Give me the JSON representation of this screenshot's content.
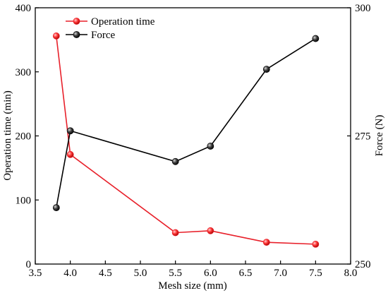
{
  "chart_data": {
    "type": "line",
    "title": "",
    "xlabel": "Mesh size (mm)",
    "ylabel_left": "Operation time (min)",
    "ylabel_right": "Force (N)",
    "xlim": [
      3.5,
      8.0
    ],
    "ylim_left": [
      0,
      400
    ],
    "ylim_right": [
      250,
      300
    ],
    "x_ticks": [
      "3.5",
      "4.0",
      "4.5",
      "5.0",
      "5.5",
      "6.0",
      "6.5",
      "7.0",
      "7.5",
      "8.0"
    ],
    "y_left_ticks": [
      "0",
      "100",
      "200",
      "300",
      "400"
    ],
    "y_right_ticks": [
      "250",
      "275",
      "300"
    ],
    "grid": false,
    "legend_position": "top-left",
    "series": [
      {
        "name": "Operation time",
        "axis": "left",
        "color": "#e8202a",
        "x": [
          3.8,
          4.0,
          5.5,
          6.0,
          6.8,
          7.5
        ],
        "values": [
          356,
          171,
          49,
          52,
          34,
          31
        ]
      },
      {
        "name": "Force",
        "axis": "right",
        "color": "#000000",
        "x": [
          3.8,
          4.0,
          5.5,
          6.0,
          6.8,
          7.5
        ],
        "values": [
          261,
          276,
          270,
          273,
          288,
          294
        ]
      }
    ]
  }
}
